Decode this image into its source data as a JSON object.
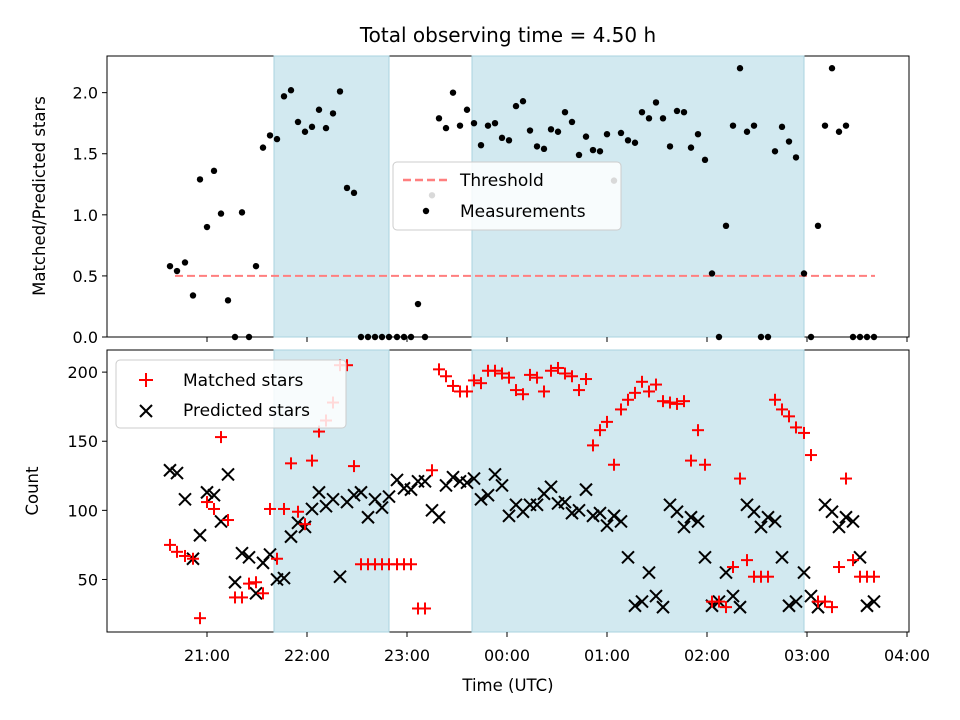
{
  "figure": {
    "title": "Total observing time = 4.50 h",
    "xlabel": "Time (UTC)",
    "x_tick_labels": [
      "21:00",
      "22:00",
      "23:00",
      "00:00",
      "01:00",
      "02:00",
      "03:00",
      "04:00"
    ],
    "x_tick_hours": [
      21,
      22,
      23,
      24,
      25,
      26,
      27,
      28
    ],
    "x_range_hours": [
      20.0,
      28.02
    ],
    "shaded_intervals_hours": [
      [
        21.67,
        22.82
      ],
      [
        23.65,
        26.97
      ]
    ],
    "shade_color": "#d2e9f0"
  },
  "chart_data": [
    {
      "type": "scatter",
      "panel": "top",
      "ylabel": "Matched/Predicted stars",
      "ylim": [
        0,
        2.3
      ],
      "y_ticks": [
        0.0,
        0.5,
        1.0,
        1.5,
        2.0
      ],
      "y_tick_labels": [
        "0.0",
        "0.5",
        "1.0",
        "1.5",
        "2.0"
      ],
      "legend": {
        "placement": "center",
        "entries": [
          "Threshold",
          "Measurements"
        ]
      },
      "threshold": {
        "name": "Threshold",
        "y": 0.5,
        "x_range_hours": [
          20.68,
          27.68
        ],
        "color": "#ff7f7f",
        "style": "dashed"
      },
      "series": [
        {
          "name": "Measurements",
          "color": "#000000",
          "x_hours": [
            20.63,
            20.7,
            20.78,
            20.86,
            20.93,
            21.0,
            21.07,
            21.14,
            21.21,
            21.28,
            21.35,
            21.42,
            21.49,
            21.56,
            21.63,
            21.7,
            21.77,
            21.84,
            21.91,
            21.98,
            22.05,
            22.12,
            22.19,
            22.26,
            22.33,
            22.4,
            22.47,
            22.54,
            22.61,
            22.68,
            22.75,
            22.82,
            22.9,
            22.97,
            23.04,
            23.11,
            23.18,
            23.25,
            23.32,
            23.39,
            23.46,
            23.53,
            23.6,
            23.67,
            23.74,
            23.81,
            23.88,
            23.95,
            24.02,
            24.09,
            24.16,
            24.23,
            24.3,
            24.37,
            24.44,
            24.51,
            24.58,
            24.65,
            24.72,
            24.79,
            24.86,
            24.93,
            25.0,
            25.07,
            25.14,
            25.21,
            25.28,
            25.35,
            25.42,
            25.49,
            25.56,
            25.63,
            25.7,
            25.77,
            25.84,
            25.91,
            25.98,
            26.05,
            26.12,
            26.19,
            26.26,
            26.33,
            26.4,
            26.47,
            26.54,
            26.61,
            26.68,
            26.75,
            26.82,
            26.89,
            26.97,
            27.04,
            27.11,
            27.18,
            27.25,
            27.32,
            27.39,
            27.46,
            27.53,
            27.6,
            27.67
          ],
          "y": [
            0.58,
            0.54,
            0.61,
            0.34,
            1.29,
            0.9,
            1.36,
            1.01,
            0.3,
            0.0,
            1.02,
            0.0,
            0.58,
            1.55,
            1.65,
            1.62,
            1.97,
            2.02,
            1.76,
            1.68,
            1.72,
            1.86,
            1.71,
            1.83,
            2.01,
            1.22,
            1.18,
            0.0,
            0.0,
            0.0,
            0.0,
            0.0,
            0.0,
            0.0,
            0.0,
            0.27,
            0.0,
            1.16,
            1.79,
            1.71,
            2.0,
            1.73,
            1.86,
            1.75,
            1.57,
            1.73,
            1.75,
            1.63,
            1.61,
            1.89,
            1.93,
            1.69,
            1.56,
            1.54,
            1.7,
            1.68,
            1.84,
            1.76,
            1.49,
            1.64,
            1.53,
            1.52,
            1.66,
            1.28,
            1.67,
            1.61,
            1.59,
            1.84,
            1.79,
            1.92,
            1.79,
            1.56,
            1.85,
            1.84,
            1.55,
            1.66,
            1.45,
            0.52,
            0.0,
            0.91,
            1.73,
            2.2,
            1.68,
            1.73,
            0.0,
            0.0,
            1.52,
            1.72,
            1.6,
            1.47,
            0.52,
            0.0,
            0.91,
            1.73,
            2.2,
            1.68,
            1.73,
            0.0,
            0.0,
            0.0,
            0.0
          ]
        }
      ]
    },
    {
      "type": "scatter",
      "panel": "bottom",
      "ylabel": "Count",
      "ylim": [
        12,
        216
      ],
      "y_ticks": [
        50,
        100,
        150,
        200
      ],
      "y_tick_labels": [
        "50",
        "100",
        "150",
        "200"
      ],
      "legend": {
        "placement": "upper left",
        "entries": [
          "Matched stars",
          "Predicted stars"
        ]
      },
      "series": [
        {
          "name": "Matched stars",
          "marker": "plus",
          "color": "#ff0000",
          "x_hours": [
            20.63,
            20.7,
            20.78,
            20.86,
            20.93,
            21.0,
            21.07,
            21.14,
            21.21,
            21.28,
            21.35,
            21.42,
            21.49,
            21.56,
            21.63,
            21.7,
            21.77,
            21.84,
            21.91,
            21.98,
            22.05,
            22.12,
            22.19,
            22.26,
            22.33,
            22.4,
            22.47,
            22.54,
            22.61,
            22.68,
            22.75,
            22.82,
            22.9,
            22.97,
            23.04,
            23.11,
            23.18,
            23.25,
            23.32,
            23.39,
            23.46,
            23.53,
            23.6,
            23.67,
            23.74,
            23.81,
            23.88,
            23.95,
            24.02,
            24.09,
            24.16,
            24.23,
            24.3,
            24.37,
            24.44,
            24.51,
            24.58,
            24.65,
            24.72,
            24.79,
            24.86,
            24.93,
            25.0,
            25.07,
            25.14,
            25.21,
            25.28,
            25.35,
            25.42,
            25.49,
            25.56,
            25.63,
            25.7,
            25.77,
            25.84,
            25.91,
            25.98,
            26.05,
            26.12,
            26.19,
            26.26,
            26.33,
            26.4,
            26.47,
            26.54,
            26.61,
            26.68,
            26.75,
            26.82,
            26.89,
            26.97,
            27.04,
            27.11,
            27.18,
            27.25,
            27.32,
            27.39,
            27.46,
            27.53,
            27.6,
            27.67
          ],
          "y": [
            75,
            70,
            67,
            65,
            22,
            106,
            101,
            153,
            93,
            37,
            37,
            47,
            48,
            40,
            101,
            65,
            101,
            134,
            99,
            90,
            136,
            157,
            165,
            178,
            205,
            205,
            132,
            61,
            61,
            61,
            61,
            61,
            61,
            61,
            61,
            29,
            29,
            129,
            202,
            197,
            190,
            186,
            186,
            194,
            192,
            201,
            201,
            199,
            196,
            187,
            184,
            198,
            196,
            186,
            201,
            203,
            199,
            197,
            187,
            195,
            147,
            158,
            164,
            133,
            173,
            180,
            185,
            193,
            186,
            191,
            179,
            178,
            177,
            179,
            136,
            158,
            133,
            34,
            34,
            30,
            59,
            123,
            64,
            52,
            52,
            52,
            180,
            173,
            168,
            160,
            156,
            140,
            34,
            34,
            30,
            59,
            123,
            64,
            52,
            52,
            52
          ]
        },
        {
          "name": "Predicted stars",
          "marker": "x",
          "color": "#000000",
          "x_hours": [
            20.63,
            20.7,
            20.78,
            20.86,
            20.93,
            21.0,
            21.07,
            21.14,
            21.21,
            21.28,
            21.35,
            21.42,
            21.49,
            21.56,
            21.63,
            21.7,
            21.77,
            21.84,
            21.91,
            21.98,
            22.05,
            22.12,
            22.19,
            22.26,
            22.33,
            22.4,
            22.47,
            22.54,
            22.61,
            22.68,
            22.75,
            22.82,
            22.9,
            22.97,
            23.04,
            23.11,
            23.18,
            23.25,
            23.32,
            23.39,
            23.46,
            23.53,
            23.6,
            23.67,
            23.74,
            23.81,
            23.88,
            23.95,
            24.02,
            24.09,
            24.16,
            24.23,
            24.3,
            24.37,
            24.44,
            24.51,
            24.58,
            24.65,
            24.72,
            24.79,
            24.86,
            24.93,
            25.0,
            25.07,
            25.14,
            25.21,
            25.28,
            25.35,
            25.42,
            25.49,
            25.56,
            25.63,
            25.7,
            25.77,
            25.84,
            25.91,
            25.98,
            26.05,
            26.12,
            26.19,
            26.26,
            26.33,
            26.4,
            26.47,
            26.54,
            26.61,
            26.68,
            26.75,
            26.82,
            26.89,
            26.97,
            27.04,
            27.11,
            27.18,
            27.25,
            27.32,
            27.39,
            27.46,
            27.53,
            27.6,
            27.67
          ],
          "y": [
            129,
            127,
            108,
            65,
            82,
            113,
            111,
            92,
            126,
            48,
            69,
            66,
            40,
            62,
            68,
            50,
            51,
            81,
            91,
            88,
            101,
            113,
            103,
            108,
            52,
            106,
            111,
            113,
            95,
            108,
            102,
            110,
            122,
            116,
            115,
            121,
            121,
            100,
            95,
            118,
            124,
            121,
            120,
            123,
            108,
            111,
            126,
            118,
            96,
            104,
            99,
            104,
            104,
            112,
            117,
            105,
            106,
            98,
            100,
            115,
            96,
            98,
            89,
            96,
            92,
            66,
            31,
            34,
            55,
            38,
            30,
            104,
            99,
            88,
            95,
            92,
            66,
            31,
            34,
            55,
            38,
            30,
            104,
            99,
            88,
            95,
            92,
            66,
            31,
            34,
            55,
            38,
            30,
            104,
            99,
            88,
            95,
            92,
            66,
            31,
            34
          ]
        }
      ]
    }
  ]
}
